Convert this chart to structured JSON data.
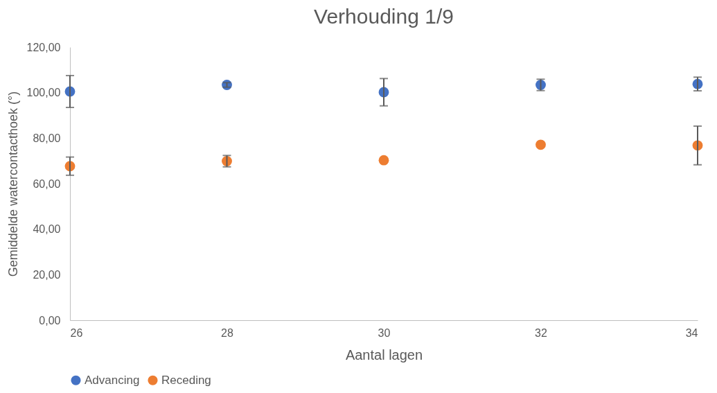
{
  "chart_data": {
    "type": "scatter",
    "title": "Verhouding 1/9",
    "xlabel": "Aantal lagen",
    "ylabel": "Gemiddelde watercontacthoek (°)",
    "x": [
      26,
      28,
      30,
      32,
      34
    ],
    "series": [
      {
        "name": "Advancing",
        "color": "#4472c4",
        "values": [
          100.5,
          103.4,
          100.2,
          103.4,
          103.8
        ],
        "errors": [
          7,
          1,
          6,
          2.5,
          3
        ]
      },
      {
        "name": "Receding",
        "color": "#ed7d31",
        "values": [
          67.7,
          69.9,
          70.3,
          77.1,
          76.8
        ],
        "errors": [
          4,
          2.5,
          null,
          null,
          8.5
        ]
      }
    ],
    "xlim": [
      26,
      34
    ],
    "xticks": [
      26,
      28,
      30,
      32,
      34
    ],
    "ylim": [
      0,
      120
    ],
    "yticks": [
      {
        "value": 0,
        "label": "0,00"
      },
      {
        "value": 20,
        "label": "20,00"
      },
      {
        "value": 40,
        "label": "40,00"
      },
      {
        "value": 60,
        "label": "60,00"
      },
      {
        "value": 80,
        "label": "80,00"
      },
      {
        "value": 100,
        "label": "100,00"
      },
      {
        "value": 120,
        "label": "120,00"
      }
    ],
    "grid": false,
    "legend": "bottom",
    "marker": "circle"
  }
}
